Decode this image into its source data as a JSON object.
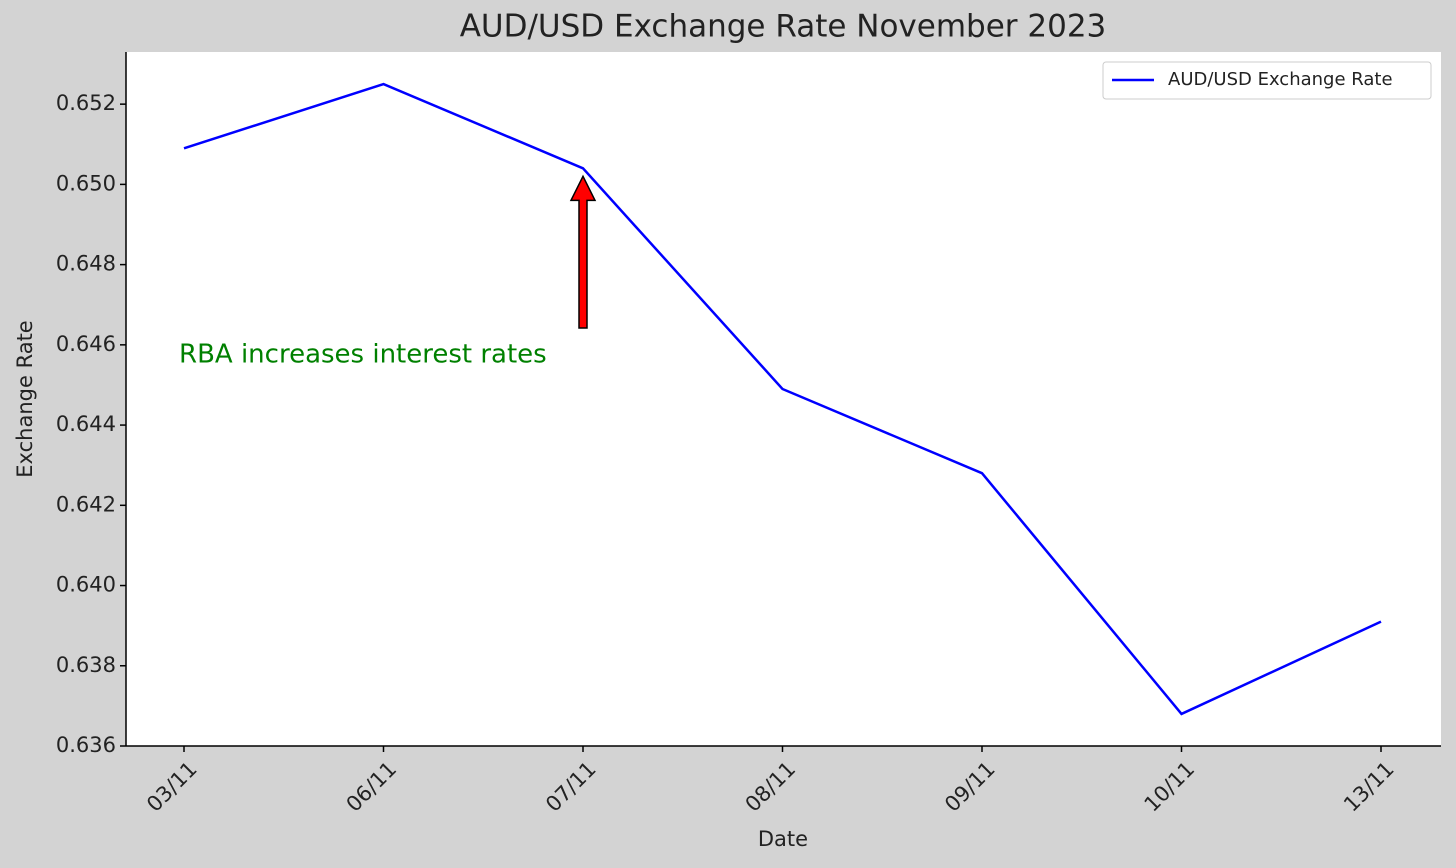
{
  "chart_data": {
    "type": "line",
    "title": "AUD/USD Exchange Rate November 2023",
    "x_label": "Date",
    "y_label": "Exchange Rate",
    "categories": [
      "03/11",
      "06/11",
      "07/11",
      "08/11",
      "09/11",
      "10/11",
      "13/11"
    ],
    "series": [
      {
        "name": "AUD/USD Exchange Rate",
        "color": "#0000ff",
        "values": [
          0.6509,
          0.6525,
          0.6504,
          0.6449,
          0.6428,
          0.6368,
          0.6391
        ]
      }
    ],
    "ylim": [
      0.636,
      0.6533
    ],
    "yticks": [
      0.636,
      0.638,
      {
        "value": 0.64,
        "label": "0.640"
      },
      0.642,
      0.644,
      0.646,
      0.648,
      {
        "value": 0.65,
        "label": "0.650"
      },
      0.652
    ],
    "grid": false,
    "legend": "upper right",
    "annotation": {
      "text": "RBA increases interest rates",
      "color": "#008000"
    }
  }
}
